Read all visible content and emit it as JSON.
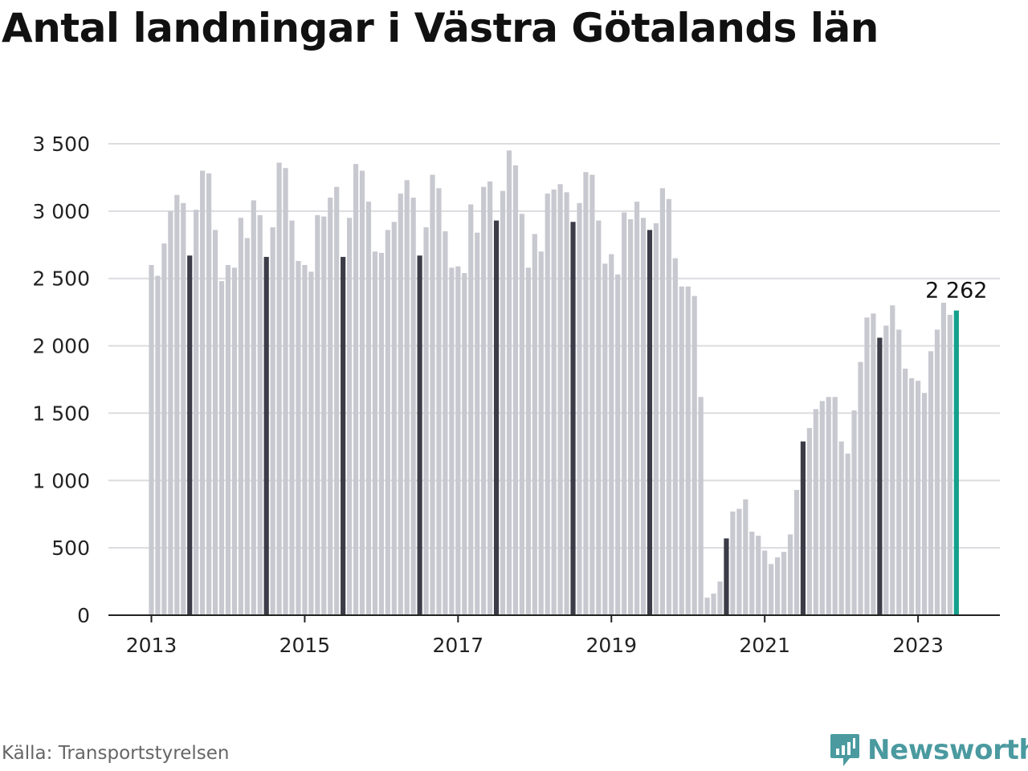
{
  "title": "Antal landningar i Västra Götalands län",
  "source": "Källa: Transportstyrelsen",
  "brand": "Newsworthy",
  "colors": {
    "bar": "#c8c8d0",
    "july_bar": "#3c3c48",
    "latest_bar": "#14a08c",
    "grid": "#dcdce0",
    "axis": "#222222",
    "brand": "#4a9aa0"
  },
  "chart_data": {
    "type": "bar",
    "title": "Antal landningar i Västra Götalands län",
    "xlabel": "",
    "ylabel": "",
    "ylim": [
      0,
      3500
    ],
    "y_ticks": [
      0,
      500,
      1000,
      1500,
      2000,
      2500,
      3000,
      3500
    ],
    "y_tick_labels": [
      "0",
      "500",
      "1 000",
      "1 500",
      "2 000",
      "2 500",
      "3 000",
      "3 500"
    ],
    "x_tick_labels": [
      "2013",
      "2015",
      "2017",
      "2019",
      "2021",
      "2023"
    ],
    "start": "2013-01",
    "end": "2023-07",
    "grid": true,
    "values": [
      2600,
      2520,
      2760,
      3000,
      3120,
      3060,
      2670,
      3010,
      3300,
      3280,
      2860,
      2480,
      2600,
      2580,
      2950,
      2800,
      3080,
      2970,
      2660,
      2880,
      3360,
      3320,
      2930,
      2630,
      2600,
      2550,
      2970,
      2960,
      3100,
      3180,
      2660,
      2950,
      3350,
      3300,
      3070,
      2700,
      2690,
      2860,
      2920,
      3130,
      3230,
      3100,
      2670,
      2880,
      3270,
      3170,
      2850,
      2580,
      2590,
      2540,
      3050,
      2840,
      3180,
      3220,
      2930,
      3150,
      3450,
      3340,
      2980,
      2580,
      2830,
      2700,
      3130,
      3160,
      3200,
      3140,
      2920,
      3060,
      3290,
      3270,
      2930,
      2610,
      2680,
      2530,
      2990,
      2940,
      3070,
      2950,
      2860,
      2910,
      3170,
      3090,
      2650,
      2440,
      2440,
      2370,
      1620,
      130,
      160,
      250,
      570,
      770,
      790,
      860,
      620,
      590,
      480,
      380,
      430,
      470,
      600,
      930,
      1290,
      1390,
      1530,
      1590,
      1620,
      1620,
      1290,
      1200,
      1520,
      1880,
      2210,
      2240,
      2060,
      2150,
      2300,
      2120,
      1830,
      1760,
      1740,
      1650,
      1960,
      2120,
      2320,
      2230,
      2262
    ],
    "highlight": "July values shown in dark bars; latest value highlighted",
    "latest_label": "2 262"
  }
}
